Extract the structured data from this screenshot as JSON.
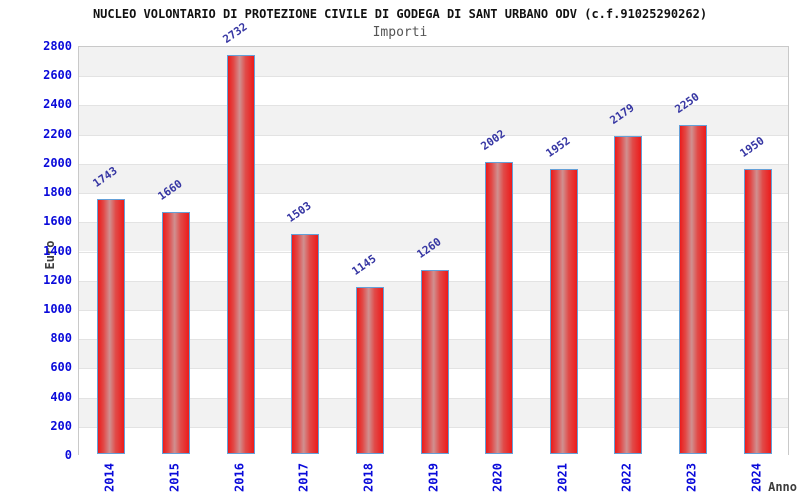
{
  "chart_data": {
    "type": "bar",
    "title": "NUCLEO VOLONTARIO DI PROTEZIONE CIVILE DI GODEGA DI SANT URBANO ODV (c.f.91025290262)",
    "subtitle": "Importi",
    "xlabel": "Anno",
    "ylabel": "Euro",
    "categories": [
      "2014",
      "2015",
      "2016",
      "2017",
      "2018",
      "2019",
      "2020",
      "2021",
      "2022",
      "2023",
      "2024"
    ],
    "values": [
      1743,
      1660,
      2732,
      1503,
      1145,
      1260,
      2002,
      1952,
      2179,
      2250,
      1950
    ],
    "ylim": [
      0,
      2800
    ],
    "ytick_step": 200,
    "yticks": [
      0,
      200,
      400,
      600,
      800,
      1000,
      1200,
      1400,
      1600,
      1800,
      2000,
      2200,
      2400,
      2600,
      2800
    ],
    "grid": "horizontal bands alternating",
    "legend": "none",
    "colors": {
      "bar_fill_edge": "#ec1b1b",
      "bar_fill_center": "#d09090",
      "bar_border": "#64a0d8",
      "axis_tick_label": "#0a0ada",
      "bar_value_label": "#3636a3",
      "band_gray": "#f2f2f2",
      "band_white": "#ffffff",
      "gridline": "#e3e3e3",
      "plot_border": "#c9c9c9",
      "title_text": "#111111",
      "subtitle_text": "#555555",
      "axis_title_text": "#3d3d3d"
    }
  }
}
